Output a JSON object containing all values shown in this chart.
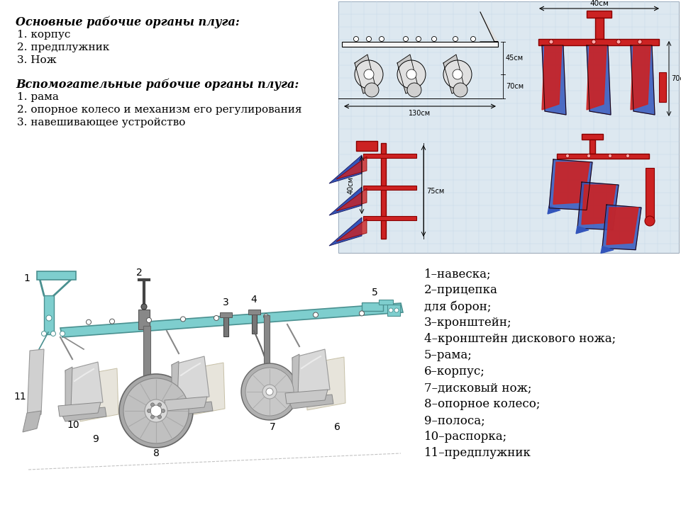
{
  "bg_color": "#ffffff",
  "top_left_text": {
    "title1": "Основные рабочие органы плуга:",
    "items1": [
      "1. корпус",
      "2. предплужник",
      "3. Нож"
    ],
    "title2": "Вспомогательные рабочие органы плуга:",
    "items2": [
      "1. рама",
      "2. опорное колесо и механизм его регулирования",
      "3. навешивающее устройство"
    ]
  },
  "legend_items": [
    "1–навеска;",
    "2–прицепка",
    "для борон;",
    "3–кронштейн;",
    "4–кронштейн дискового ножа;",
    "5–рама;",
    "6–корпус;",
    "7–дисковый нож;",
    "8–опорное колесо;",
    "9–полоса;",
    "10–распорка;",
    "11–предплужник"
  ],
  "grid_color": "#c8d8e8",
  "grid_bg": "#dde8f0",
  "plow_cyan": "#7ecece",
  "plow_cyan_dark": "#4a9090",
  "gray_light": "#d0d0d0",
  "gray_mid": "#a0a0a0",
  "red_body": "#cc2222",
  "blue_body": "#3355bb"
}
